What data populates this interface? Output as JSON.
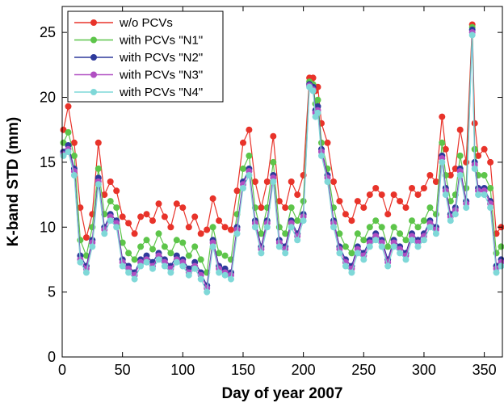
{
  "chart_data": {
    "type": "line",
    "xlabel": "Day of year 2007",
    "ylabel": "K-band STD (mm)",
    "xlim": [
      0,
      365
    ],
    "ylim": [
      0,
      27
    ],
    "xticks": [
      0,
      50,
      100,
      150,
      200,
      250,
      300,
      350
    ],
    "yticks": [
      0,
      5,
      10,
      15,
      20,
      25
    ],
    "grid": false,
    "legend_position": "top-left",
    "markers": "filled-circle",
    "series": [
      {
        "name": "w/o PCVs",
        "color": "#e8332a",
        "x": [
          1,
          5,
          10,
          15,
          20,
          25,
          30,
          35,
          40,
          45,
          50,
          55,
          60,
          65,
          70,
          75,
          80,
          85,
          90,
          95,
          100,
          105,
          110,
          115,
          120,
          125,
          130,
          135,
          140,
          145,
          150,
          155,
          160,
          165,
          170,
          175,
          180,
          185,
          190,
          195,
          200,
          205,
          208,
          210,
          212,
          215,
          220,
          225,
          230,
          235,
          240,
          245,
          250,
          255,
          260,
          265,
          270,
          275,
          280,
          285,
          290,
          295,
          300,
          305,
          310,
          315,
          318,
          322,
          326,
          330,
          335,
          340,
          342,
          345,
          350,
          355,
          360,
          364
        ],
        "y": [
          17.5,
          19.3,
          16.5,
          11.5,
          9.2,
          11.0,
          16.5,
          12.5,
          13.5,
          12.8,
          10.8,
          10.3,
          9.5,
          10.8,
          11.0,
          10.5,
          11.8,
          10.8,
          10.0,
          11.8,
          11.5,
          10.0,
          10.8,
          9.5,
          9.8,
          12.2,
          10.5,
          10.0,
          9.8,
          12.8,
          16.5,
          17.5,
          13.5,
          11.5,
          13.5,
          17.0,
          12.0,
          11.5,
          13.5,
          12.5,
          14.0,
          21.5,
          21.5,
          20.5,
          20.8,
          18.0,
          16.5,
          13.5,
          12.0,
          11.0,
          10.5,
          12.0,
          11.5,
          12.5,
          13.0,
          12.5,
          11.0,
          12.5,
          12.0,
          11.5,
          13.0,
          12.5,
          13.0,
          14.0,
          13.5,
          18.5,
          16.0,
          14.0,
          14.5,
          17.5,
          15.0,
          25.6,
          18.0,
          15.5,
          16.0,
          15.0,
          9.5,
          10.0
        ]
      },
      {
        "name": "with PCVs \"N1\"",
        "color": "#5dc54a",
        "x": [
          1,
          5,
          10,
          15,
          20,
          25,
          30,
          35,
          40,
          45,
          50,
          55,
          60,
          65,
          70,
          75,
          80,
          85,
          90,
          95,
          100,
          105,
          110,
          115,
          120,
          125,
          130,
          135,
          140,
          145,
          150,
          155,
          160,
          165,
          170,
          175,
          180,
          185,
          190,
          195,
          200,
          205,
          208,
          210,
          212,
          215,
          220,
          225,
          230,
          235,
          240,
          245,
          250,
          255,
          260,
          265,
          270,
          275,
          280,
          285,
          290,
          295,
          300,
          305,
          310,
          315,
          318,
          322,
          326,
          330,
          335,
          340,
          342,
          345,
          350,
          355,
          360,
          364
        ],
        "y": [
          16.5,
          17.3,
          15.5,
          9.0,
          7.8,
          10.0,
          14.5,
          11.0,
          12.0,
          11.5,
          8.8,
          8.0,
          7.5,
          8.5,
          9.0,
          8.3,
          9.5,
          8.5,
          8.0,
          9.0,
          8.8,
          7.8,
          8.5,
          7.5,
          6.5,
          10.0,
          8.0,
          7.8,
          7.5,
          11.0,
          14.5,
          15.5,
          11.5,
          9.5,
          11.5,
          15.0,
          10.0,
          9.5,
          11.5,
          10.5,
          12.0,
          21.2,
          21.0,
          19.5,
          19.8,
          16.5,
          14.5,
          11.5,
          9.5,
          8.5,
          8.0,
          9.5,
          9.0,
          10.0,
          10.5,
          10.0,
          8.5,
          10.0,
          9.5,
          9.0,
          10.5,
          10.0,
          10.5,
          11.5,
          11.0,
          16.5,
          14.0,
          12.0,
          12.5,
          15.5,
          13.0,
          25.4,
          16.0,
          14.0,
          14.0,
          13.0,
          8.0,
          8.5
        ]
      },
      {
        "name": "with PCVs \"N2\"",
        "color": "#2e3a9c",
        "x": [
          1,
          5,
          10,
          15,
          20,
          25,
          30,
          35,
          40,
          45,
          50,
          55,
          60,
          65,
          70,
          75,
          80,
          85,
          90,
          95,
          100,
          105,
          110,
          115,
          120,
          125,
          130,
          135,
          140,
          145,
          150,
          155,
          160,
          165,
          170,
          175,
          180,
          185,
          190,
          195,
          200,
          205,
          208,
          210,
          212,
          215,
          220,
          225,
          230,
          235,
          240,
          245,
          250,
          255,
          260,
          265,
          270,
          275,
          280,
          285,
          290,
          295,
          300,
          305,
          310,
          315,
          318,
          322,
          326,
          330,
          335,
          340,
          342,
          345,
          350,
          355,
          360,
          364
        ],
        "y": [
          15.8,
          16.3,
          14.5,
          7.8,
          7.0,
          9.0,
          13.8,
          10.0,
          11.0,
          10.5,
          7.5,
          7.0,
          6.5,
          7.5,
          7.8,
          7.3,
          8.0,
          7.5,
          7.0,
          7.8,
          7.5,
          6.8,
          7.3,
          6.5,
          5.5,
          9.0,
          7.0,
          6.8,
          6.5,
          10.0,
          13.5,
          14.5,
          10.5,
          8.5,
          10.5,
          14.0,
          9.0,
          8.5,
          10.5,
          9.5,
          11.0,
          21.0,
          20.8,
          19.0,
          19.3,
          16.0,
          14.0,
          10.5,
          8.5,
          7.5,
          7.0,
          8.5,
          8.0,
          9.0,
          9.5,
          9.0,
          7.5,
          9.0,
          8.5,
          8.0,
          9.5,
          9.0,
          9.5,
          10.5,
          10.0,
          15.5,
          13.0,
          11.0,
          11.5,
          14.5,
          12.0,
          25.2,
          15.0,
          13.0,
          13.0,
          12.0,
          7.0,
          7.5
        ]
      },
      {
        "name": "with PCVs \"N3\"",
        "color": "#b04fc2",
        "x": [
          1,
          5,
          10,
          15,
          20,
          25,
          30,
          35,
          40,
          45,
          50,
          55,
          60,
          65,
          70,
          75,
          80,
          85,
          90,
          95,
          100,
          105,
          110,
          115,
          120,
          125,
          130,
          135,
          140,
          145,
          150,
          155,
          160,
          165,
          170,
          175,
          180,
          185,
          190,
          195,
          200,
          205,
          208,
          210,
          212,
          215,
          220,
          225,
          230,
          235,
          240,
          245,
          250,
          255,
          260,
          265,
          270,
          275,
          280,
          285,
          290,
          295,
          300,
          305,
          310,
          315,
          318,
          322,
          326,
          330,
          335,
          340,
          342,
          345,
          350,
          355,
          360,
          364
        ],
        "y": [
          15.6,
          16.0,
          14.3,
          7.5,
          6.8,
          8.8,
          13.5,
          9.8,
          10.8,
          10.3,
          7.3,
          6.8,
          6.3,
          7.3,
          7.5,
          7.0,
          7.8,
          7.3,
          6.8,
          7.5,
          7.3,
          6.5,
          7.0,
          6.3,
          5.3,
          8.8,
          6.8,
          6.5,
          6.3,
          9.8,
          13.3,
          14.3,
          10.3,
          8.3,
          10.3,
          13.8,
          8.8,
          8.3,
          10.3,
          9.3,
          10.8,
          20.9,
          20.6,
          18.8,
          19.0,
          15.8,
          13.8,
          10.3,
          8.3,
          7.3,
          6.8,
          8.3,
          7.8,
          8.8,
          9.3,
          8.8,
          7.3,
          8.8,
          8.3,
          7.8,
          9.3,
          8.8,
          9.3,
          10.3,
          9.8,
          15.3,
          12.8,
          10.8,
          11.3,
          14.3,
          11.8,
          25.0,
          14.8,
          12.8,
          12.8,
          11.8,
          6.8,
          7.3
        ]
      },
      {
        "name": "with PCVs \"N4\"",
        "color": "#7fd8d8",
        "x": [
          1,
          5,
          10,
          15,
          20,
          25,
          30,
          35,
          40,
          45,
          50,
          55,
          60,
          65,
          70,
          75,
          80,
          85,
          90,
          95,
          100,
          105,
          110,
          115,
          120,
          125,
          130,
          135,
          140,
          145,
          150,
          155,
          160,
          165,
          170,
          175,
          180,
          185,
          190,
          195,
          200,
          205,
          208,
          210,
          212,
          215,
          220,
          225,
          230,
          235,
          240,
          245,
          250,
          255,
          260,
          265,
          270,
          275,
          280,
          285,
          290,
          295,
          300,
          305,
          310,
          315,
          318,
          322,
          326,
          330,
          335,
          340,
          342,
          345,
          350,
          355,
          360,
          364
        ],
        "y": [
          15.5,
          15.8,
          14.0,
          7.3,
          6.5,
          8.5,
          13.3,
          9.5,
          10.5,
          10.0,
          7.0,
          6.5,
          6.0,
          7.0,
          7.3,
          6.8,
          7.5,
          7.0,
          6.5,
          7.3,
          7.0,
          6.3,
          6.8,
          6.0,
          5.0,
          8.5,
          6.5,
          6.3,
          6.0,
          9.5,
          13.0,
          14.0,
          10.0,
          8.0,
          10.0,
          13.5,
          8.5,
          8.0,
          10.0,
          9.0,
          10.5,
          20.8,
          20.5,
          18.5,
          18.8,
          15.5,
          13.5,
          10.0,
          8.0,
          7.0,
          6.5,
          8.0,
          7.5,
          8.5,
          9.0,
          8.5,
          7.0,
          8.5,
          8.0,
          7.5,
          9.0,
          8.5,
          9.0,
          10.0,
          9.5,
          15.0,
          12.5,
          10.5,
          11.0,
          14.0,
          11.5,
          24.8,
          14.5,
          12.5,
          12.5,
          11.5,
          6.5,
          7.0
        ]
      }
    ]
  }
}
